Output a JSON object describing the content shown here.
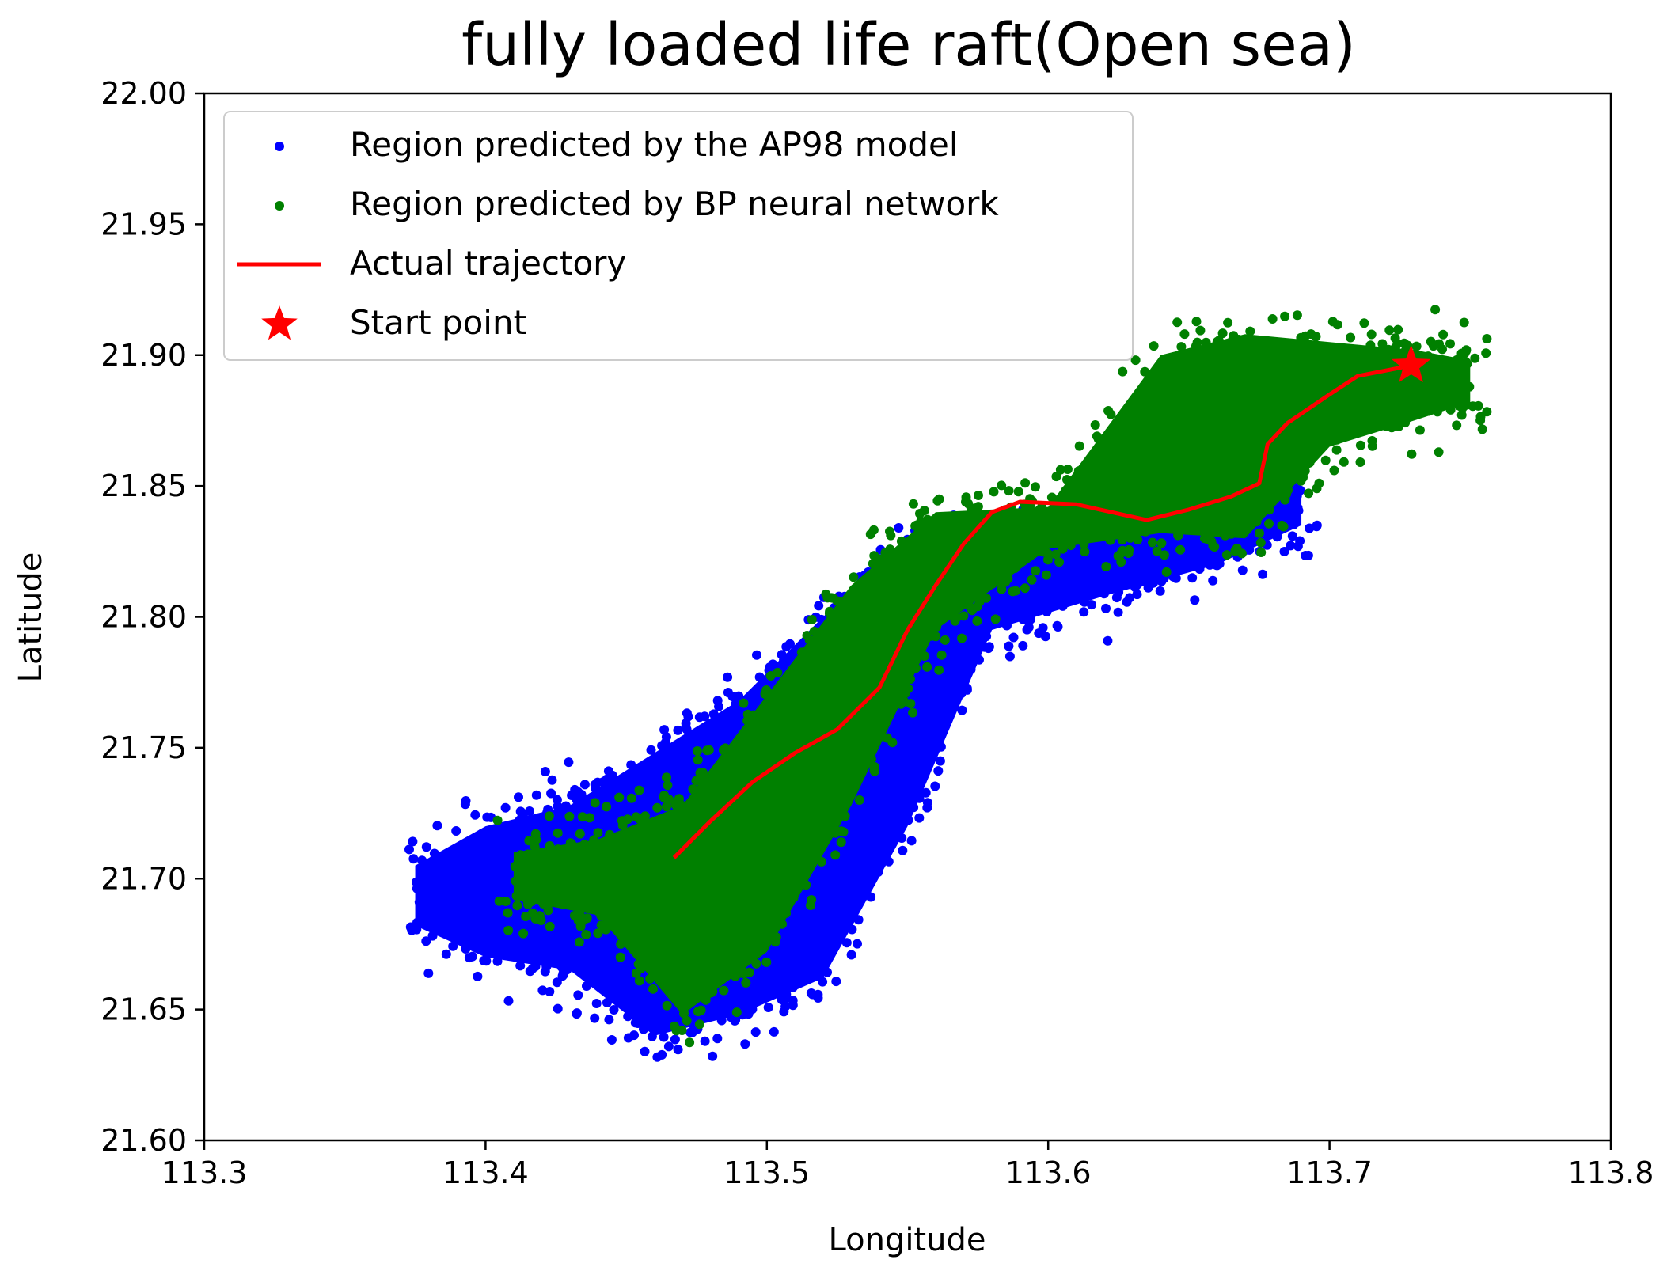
{
  "chart_data": {
    "type": "scatter",
    "title": "fully loaded life raft(Open sea)",
    "xlabel": "Longitude",
    "ylabel": "Latitude",
    "xlim": [
      113.3,
      113.8
    ],
    "ylim": [
      21.6,
      22.0
    ],
    "x_ticks": [
      "113.3",
      "113.4",
      "113.5",
      "113.6",
      "113.7",
      "113.8"
    ],
    "y_ticks": [
      "21.60",
      "21.65",
      "21.70",
      "21.75",
      "21.80",
      "21.85",
      "21.90",
      "21.95",
      "22.00"
    ],
    "grid": false,
    "legend_position": "top-left",
    "series": [
      {
        "name": "Region predicted by the AP98 model",
        "kind": "scatter-region",
        "color": "#0000ff",
        "region_bands": [
          {
            "lon": 113.375,
            "lat_min": 21.682,
            "lat_max": 21.705
          },
          {
            "lon": 113.4,
            "lat_min": 21.67,
            "lat_max": 21.72
          },
          {
            "lon": 113.43,
            "lat_min": 21.665,
            "lat_max": 21.728
          },
          {
            "lon": 113.46,
            "lat_min": 21.64,
            "lat_max": 21.748
          },
          {
            "lon": 113.49,
            "lat_min": 21.648,
            "lat_max": 21.768
          },
          {
            "lon": 113.52,
            "lat_min": 21.662,
            "lat_max": 21.8
          },
          {
            "lon": 113.55,
            "lat_min": 21.72,
            "lat_max": 21.825
          },
          {
            "lon": 113.58,
            "lat_min": 21.795,
            "lat_max": 21.828
          },
          {
            "lon": 113.62,
            "lat_min": 21.808,
            "lat_max": 21.83
          },
          {
            "lon": 113.66,
            "lat_min": 21.82,
            "lat_max": 21.838
          },
          {
            "lon": 113.69,
            "lat_min": 21.835,
            "lat_max": 21.87
          }
        ]
      },
      {
        "name": "Region predicted by BP neural network",
        "kind": "scatter-region",
        "color": "#008000",
        "region_bands": [
          {
            "lon": 113.41,
            "lat_min": 21.692,
            "lat_max": 21.71
          },
          {
            "lon": 113.44,
            "lat_min": 21.686,
            "lat_max": 21.715
          },
          {
            "lon": 113.47,
            "lat_min": 21.648,
            "lat_max": 21.728
          },
          {
            "lon": 113.5,
            "lat_min": 21.672,
            "lat_max": 21.77
          },
          {
            "lon": 113.53,
            "lat_min": 21.728,
            "lat_max": 21.812
          },
          {
            "lon": 113.56,
            "lat_min": 21.795,
            "lat_max": 21.84
          },
          {
            "lon": 113.6,
            "lat_min": 21.826,
            "lat_max": 21.842
          },
          {
            "lon": 113.64,
            "lat_min": 21.832,
            "lat_max": 21.9
          },
          {
            "lon": 113.67,
            "lat_min": 21.83,
            "lat_max": 21.908
          },
          {
            "lon": 113.7,
            "lat_min": 21.865,
            "lat_max": 21.905
          },
          {
            "lon": 113.73,
            "lat_min": 21.875,
            "lat_max": 21.902
          },
          {
            "lon": 113.75,
            "lat_min": 21.882,
            "lat_max": 21.898
          }
        ]
      },
      {
        "name": "Actual trajectory",
        "kind": "line",
        "color": "#ff0000",
        "x": [
          113.467,
          113.48,
          113.495,
          113.51,
          113.525,
          113.54,
          113.55,
          113.56,
          113.57,
          113.58,
          113.59,
          113.61,
          113.635,
          113.65,
          113.665,
          113.675,
          113.678,
          113.685,
          113.7,
          113.71,
          113.729
        ],
        "y": [
          21.708,
          21.722,
          21.737,
          21.748,
          21.757,
          21.773,
          21.795,
          21.812,
          21.828,
          21.84,
          21.844,
          21.843,
          21.837,
          21.841,
          21.846,
          21.851,
          21.866,
          21.874,
          21.885,
          21.892,
          21.896
        ]
      },
      {
        "name": "Start point",
        "kind": "marker",
        "color": "#ff0000",
        "x": [
          113.729
        ],
        "y": [
          21.896
        ]
      }
    ]
  }
}
